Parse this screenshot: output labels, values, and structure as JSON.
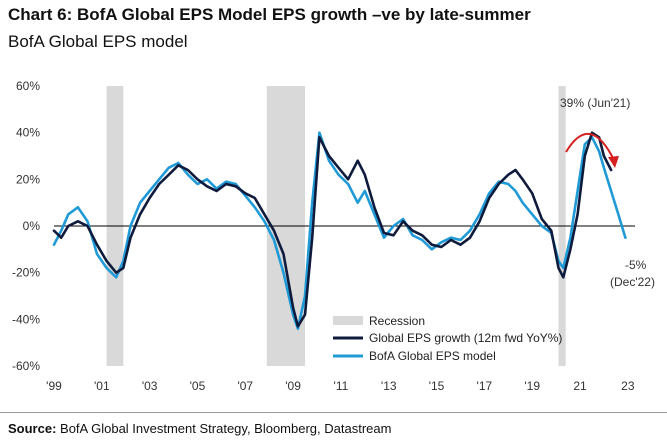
{
  "header": {
    "title": "Chart 6: BofA Global EPS Model EPS growth –ve by late-summer",
    "subtitle": "BofA Global EPS model"
  },
  "footer": {
    "source_label": "Source:",
    "source_text": "BofA Global Investment Strategy, Bloomberg, Datastream"
  },
  "chart_data": {
    "type": "line",
    "title": "Chart 6: BofA Global EPS Model EPS growth –ve by late-summer",
    "subtitle": "BofA Global EPS model",
    "xlabel": "",
    "ylabel": "",
    "xlim": [
      1999,
      2023.3
    ],
    "ylim": [
      -60,
      60
    ],
    "y_ticks": [
      -60,
      -40,
      -20,
      0,
      20,
      40,
      60
    ],
    "y_tick_labels": [
      "-60%",
      "-40%",
      "-20%",
      "0%",
      "20%",
      "40%",
      "60%"
    ],
    "x_ticks": [
      1999,
      2001,
      2003,
      2005,
      2007,
      2009,
      2011,
      2013,
      2015,
      2017,
      2019,
      2021,
      2023
    ],
    "x_tick_labels": [
      "'99",
      "'01",
      "'03",
      "'05",
      "'07",
      "'09",
      "'11",
      "'13",
      "'15",
      "'17",
      "'19",
      "21",
      "23"
    ],
    "grid": false,
    "zero_line": true,
    "legend_position": "bottom-right",
    "recessions": [
      {
        "start": 2001.2,
        "end": 2001.9
      },
      {
        "start": 2007.9,
        "end": 2009.5
      },
      {
        "start": 2020.1,
        "end": 2020.4
      }
    ],
    "colors": {
      "recession": "#d9d9d9",
      "global_eps_growth": "#0f1b3d",
      "bofa_model": "#1f9ad6",
      "annotation_arrow": "#d42020",
      "axis_text": "#333333"
    },
    "series": [
      {
        "name": "Global EPS growth (12m fwd YoY%)",
        "x": [
          1999.0,
          1999.3,
          1999.6,
          2000.0,
          2000.4,
          2000.8,
          2001.2,
          2001.6,
          2001.9,
          2002.2,
          2002.6,
          2003.0,
          2003.4,
          2003.8,
          2004.2,
          2004.6,
          2005.0,
          2005.4,
          2005.8,
          2006.2,
          2006.6,
          2007.0,
          2007.4,
          2007.8,
          2008.2,
          2008.6,
          2009.0,
          2009.2,
          2009.5,
          2009.8,
          2010.1,
          2010.5,
          2010.9,
          2011.3,
          2011.7,
          2012.0,
          2012.4,
          2012.8,
          2013.2,
          2013.6,
          2014.0,
          2014.4,
          2014.8,
          2015.2,
          2015.6,
          2016.0,
          2016.4,
          2016.8,
          2017.2,
          2017.6,
          2018.0,
          2018.3,
          2018.6,
          2019.0,
          2019.4,
          2019.8,
          2020.1,
          2020.3,
          2020.6,
          2020.9,
          2021.2,
          2021.5,
          2021.8,
          2022.0,
          2022.3
        ],
        "y": [
          -2,
          -5,
          0,
          2,
          0,
          -8,
          -15,
          -20,
          -18,
          -5,
          5,
          12,
          18,
          22,
          26,
          24,
          20,
          17,
          15,
          18,
          17,
          14,
          12,
          5,
          -2,
          -12,
          -35,
          -43,
          -38,
          -5,
          38,
          30,
          25,
          20,
          28,
          22,
          8,
          -3,
          -4,
          2,
          -2,
          -4,
          -8,
          -9,
          -6,
          -8,
          -5,
          2,
          12,
          18,
          22,
          24,
          20,
          14,
          3,
          -2,
          -18,
          -22,
          -10,
          5,
          30,
          40,
          38,
          30,
          24
        ]
      },
      {
        "name": "BofA Global EPS model",
        "x": [
          1999.0,
          1999.3,
          1999.6,
          2000.0,
          2000.4,
          2000.8,
          2001.2,
          2001.6,
          2001.9,
          2002.2,
          2002.6,
          2003.0,
          2003.4,
          2003.8,
          2004.2,
          2004.6,
          2005.0,
          2005.4,
          2005.8,
          2006.2,
          2006.6,
          2007.0,
          2007.4,
          2007.8,
          2008.2,
          2008.6,
          2009.0,
          2009.2,
          2009.5,
          2009.8,
          2010.1,
          2010.5,
          2010.9,
          2011.3,
          2011.7,
          2012.0,
          2012.4,
          2012.8,
          2013.2,
          2013.6,
          2014.0,
          2014.4,
          2014.8,
          2015.2,
          2015.6,
          2016.0,
          2016.4,
          2016.8,
          2017.2,
          2017.6,
          2018.0,
          2018.3,
          2018.6,
          2019.0,
          2019.4,
          2019.8,
          2020.1,
          2020.3,
          2020.6,
          2020.9,
          2021.2,
          2021.5,
          2021.8,
          2022.0,
          2022.3,
          2022.6,
          2022.9
        ],
        "y": [
          -8,
          -2,
          5,
          8,
          2,
          -12,
          -18,
          -22,
          -15,
          0,
          10,
          15,
          20,
          25,
          27,
          22,
          18,
          20,
          16,
          19,
          18,
          13,
          8,
          2,
          -6,
          -20,
          -38,
          -44,
          -30,
          10,
          40,
          28,
          22,
          18,
          10,
          15,
          5,
          -5,
          0,
          3,
          -4,
          -6,
          -10,
          -7,
          -5,
          -6,
          -2,
          5,
          14,
          19,
          18,
          15,
          10,
          5,
          0,
          -3,
          -15,
          -18,
          -5,
          15,
          35,
          38,
          32,
          25,
          15,
          5,
          -5
        ]
      }
    ],
    "annotations": [
      {
        "text": "39% (Jun'21)"
      },
      {
        "text": "-5%"
      },
      {
        "text": "(Dec'22)"
      }
    ],
    "legend": [
      {
        "label": "Recession"
      },
      {
        "label": "Global EPS growth (12m fwd YoY%)"
      },
      {
        "label": "BofA Global EPS model"
      }
    ]
  }
}
